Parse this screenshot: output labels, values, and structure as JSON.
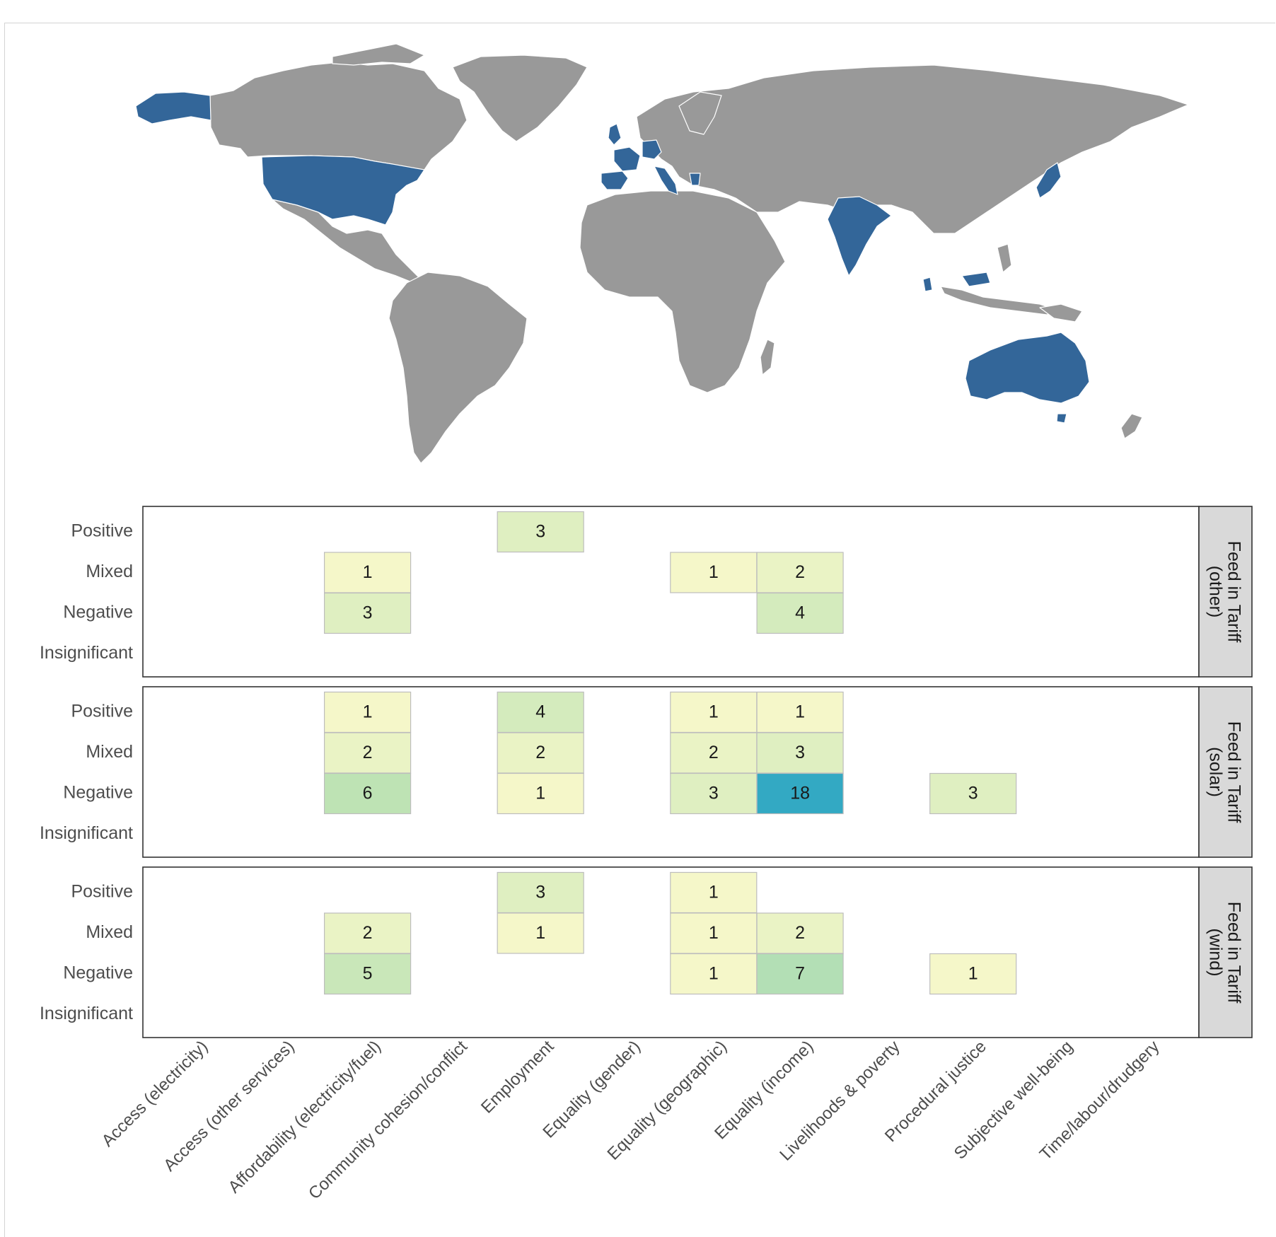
{
  "colors": {
    "highlight_country": "#336699",
    "other_country": "#999999",
    "country_border": "#ffffff",
    "panel_border": "#333333",
    "strip_fill": "#d9d9d9",
    "cell_border": "#bdbdbd",
    "scale_low": "#f5f7c9",
    "scale_mid": "#bde3b4",
    "scale_high": "#33a9c3"
  },
  "map": {
    "highlighted_countries": [
      "United States",
      "Spain",
      "France",
      "United Kingdom",
      "Germany",
      "Italy",
      "Greece",
      "India",
      "Japan",
      "Malaysia",
      "Australia"
    ]
  },
  "chart_data": {
    "type": "heatmap",
    "x_categories": [
      "Access (electricity)",
      "Access (other services)",
      "Affordability (electricity/fuel)",
      "Community cohesion/conflict",
      "Employment",
      "Equality (gender)",
      "Equality (geographic)",
      "Equality (income)",
      "Livelihoods & poverty",
      "Procedural justice",
      "Subjective well-being",
      "Time/labour/drudgery"
    ],
    "y_categories": [
      "Positive",
      "Mixed",
      "Negative",
      "Insignificant"
    ],
    "panels": [
      {
        "label_lines": [
          "Feed in Tariff",
          "(other)"
        ],
        "cells": [
          {
            "x": "Employment",
            "y": "Positive",
            "value": 3
          },
          {
            "x": "Affordability (electricity/fuel)",
            "y": "Mixed",
            "value": 1
          },
          {
            "x": "Equality (geographic)",
            "y": "Mixed",
            "value": 1
          },
          {
            "x": "Equality (income)",
            "y": "Mixed",
            "value": 2
          },
          {
            "x": "Affordability (electricity/fuel)",
            "y": "Negative",
            "value": 3
          },
          {
            "x": "Equality (income)",
            "y": "Negative",
            "value": 4
          }
        ]
      },
      {
        "label_lines": [
          "Feed in Tariff",
          "(solar)"
        ],
        "cells": [
          {
            "x": "Affordability (electricity/fuel)",
            "y": "Positive",
            "value": 1
          },
          {
            "x": "Employment",
            "y": "Positive",
            "value": 4
          },
          {
            "x": "Equality (geographic)",
            "y": "Positive",
            "value": 1
          },
          {
            "x": "Equality (income)",
            "y": "Positive",
            "value": 1
          },
          {
            "x": "Affordability (electricity/fuel)",
            "y": "Mixed",
            "value": 2
          },
          {
            "x": "Employment",
            "y": "Mixed",
            "value": 2
          },
          {
            "x": "Equality (geographic)",
            "y": "Mixed",
            "value": 2
          },
          {
            "x": "Equality (income)",
            "y": "Mixed",
            "value": 3
          },
          {
            "x": "Affordability (electricity/fuel)",
            "y": "Negative",
            "value": 6
          },
          {
            "x": "Employment",
            "y": "Negative",
            "value": 1
          },
          {
            "x": "Equality (geographic)",
            "y": "Negative",
            "value": 3
          },
          {
            "x": "Equality (income)",
            "y": "Negative",
            "value": 18
          },
          {
            "x": "Procedural justice",
            "y": "Negative",
            "value": 3
          }
        ]
      },
      {
        "label_lines": [
          "Feed in Tariff",
          "(wind)"
        ],
        "cells": [
          {
            "x": "Employment",
            "y": "Positive",
            "value": 3
          },
          {
            "x": "Equality (geographic)",
            "y": "Positive",
            "value": 1
          },
          {
            "x": "Affordability (electricity/fuel)",
            "y": "Mixed",
            "value": 2
          },
          {
            "x": "Employment",
            "y": "Mixed",
            "value": 1
          },
          {
            "x": "Equality (geographic)",
            "y": "Mixed",
            "value": 1
          },
          {
            "x": "Equality (income)",
            "y": "Mixed",
            "value": 2
          },
          {
            "x": "Affordability (electricity/fuel)",
            "y": "Negative",
            "value": 5
          },
          {
            "x": "Equality (geographic)",
            "y": "Negative",
            "value": 1
          },
          {
            "x": "Equality (income)",
            "y": "Negative",
            "value": 7
          },
          {
            "x": "Procedural justice",
            "y": "Negative",
            "value": 1
          }
        ]
      }
    ],
    "value_range": [
      1,
      18
    ],
    "grid": false,
    "legend": "none"
  }
}
